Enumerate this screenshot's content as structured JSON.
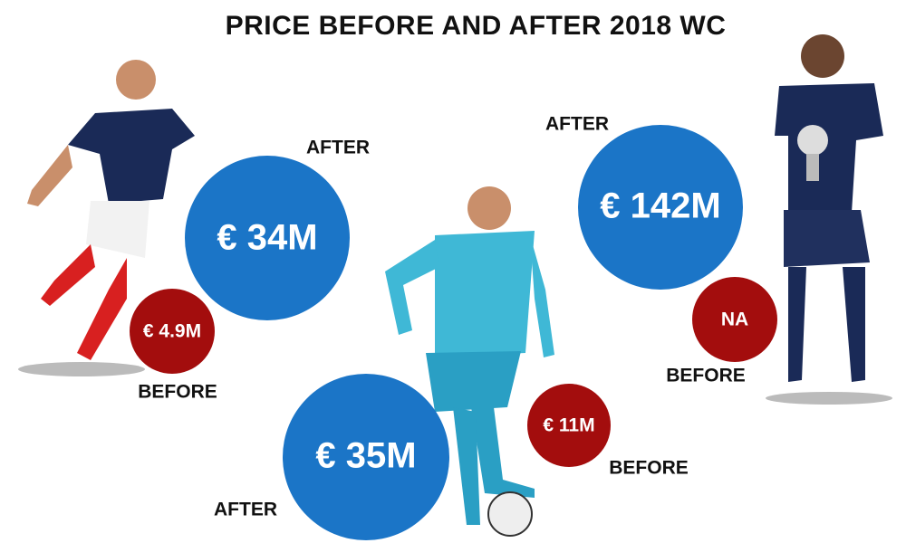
{
  "title": "PRICE BEFORE AND AFTER 2018 WC",
  "players": [
    {
      "after_label": "AFTER",
      "after_value": "€ 34M",
      "before_label": "BEFORE",
      "before_value": "€ 4.9M"
    },
    {
      "after_label": "AFTER",
      "after_value": "€ 35M",
      "before_label": "BEFORE",
      "before_value": "€ 11M"
    },
    {
      "after_label": "AFTER",
      "after_value": "€ 142M",
      "before_label": "BEFORE",
      "before_value": "NA"
    }
  ]
}
